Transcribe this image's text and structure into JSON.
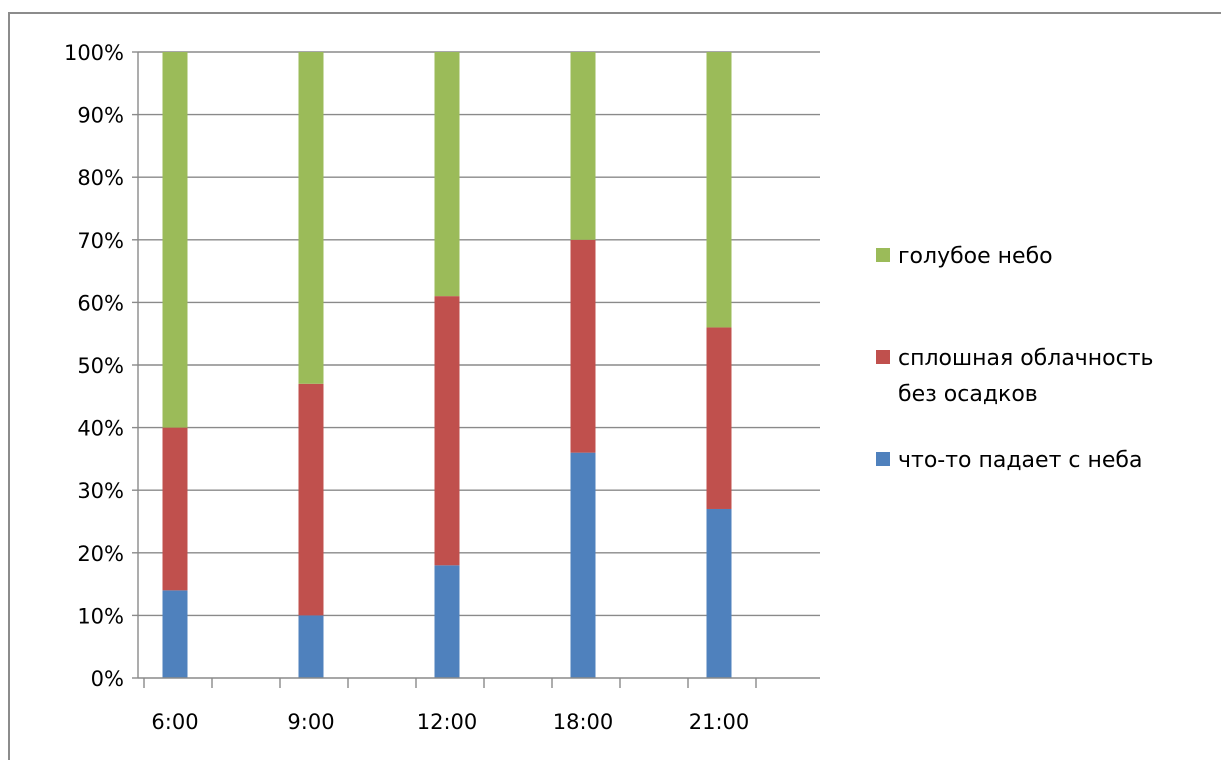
{
  "chart_data": {
    "type": "bar",
    "stacked": "percent",
    "categories": [
      "6:00",
      "9:00",
      "12:00",
      "18:00",
      "21:00"
    ],
    "series": [
      {
        "name": "что-то падает с неба",
        "color": "#4f81bd",
        "values": [
          14,
          10,
          18,
          36,
          27
        ]
      },
      {
        "name": "сплошная облачность без осадков",
        "color": "#c0504d",
        "values": [
          26,
          37,
          43,
          34,
          29
        ]
      },
      {
        "name": "голубое небо",
        "color": "#9bbb59",
        "values": [
          60,
          53,
          39,
          30,
          44
        ]
      }
    ],
    "y_ticks": [
      "0%",
      "10%",
      "20%",
      "30%",
      "40%",
      "50%",
      "60%",
      "70%",
      "80%",
      "90%",
      "100%"
    ],
    "ylim": [
      0,
      100
    ],
    "grid": true,
    "legend_position": "right",
    "legend_entries": [
      {
        "lines": [
          "голубое небо"
        ],
        "color": "#9bbb59"
      },
      {
        "lines": [
          "сплошная облачность",
          "без осадков"
        ],
        "color": "#c0504d"
      },
      {
        "lines": [
          "что-то падает с неба"
        ],
        "color": "#4f81bd"
      }
    ],
    "title": "",
    "xlabel": "",
    "ylabel": ""
  }
}
